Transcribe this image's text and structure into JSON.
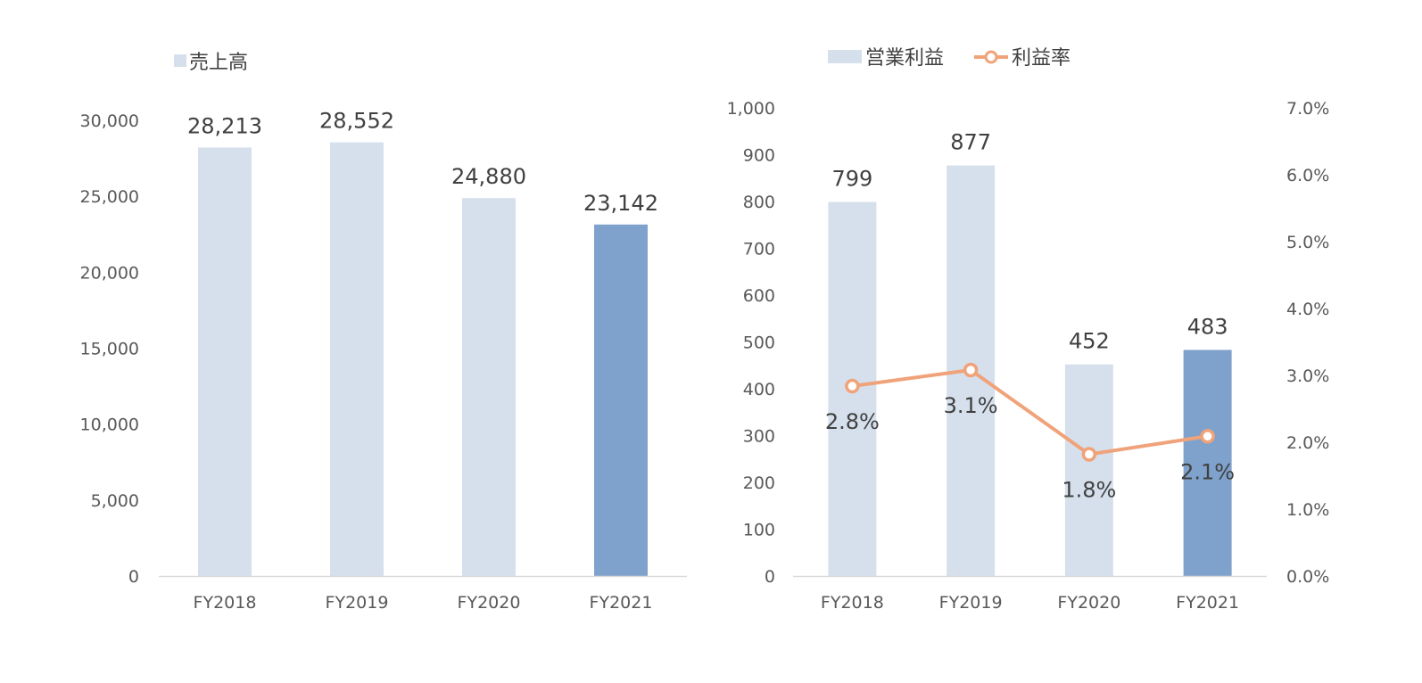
{
  "chart_data": [
    {
      "type": "bar",
      "categories": [
        "FY2018",
        "FY2019",
        "FY2020",
        "FY2021"
      ],
      "series": [
        {
          "name": "売上高",
          "values": [
            28213,
            28552,
            24880,
            23142
          ],
          "value_labels": [
            "28,213",
            "28,552",
            "24,880",
            "23,142"
          ]
        }
      ],
      "ylim": [
        0,
        30000
      ],
      "y_ticks": [
        0,
        5000,
        10000,
        15000,
        20000,
        25000,
        30000
      ],
      "y_tick_labels": [
        "0",
        "5,000",
        "10,000",
        "15,000",
        "20,000",
        "25,000",
        "30,000"
      ],
      "grid": false,
      "legend_position": "top-left",
      "highlight_category": "FY2021"
    },
    {
      "type": "bar+line",
      "categories": [
        "FY2018",
        "FY2019",
        "FY2020",
        "FY2021"
      ],
      "series": [
        {
          "name": "営業利益",
          "type": "bar",
          "axis": "left",
          "values": [
            799,
            877,
            452,
            483
          ],
          "value_labels": [
            "799",
            "877",
            "452",
            "483"
          ]
        },
        {
          "name": "利益率",
          "type": "line",
          "axis": "right",
          "values": [
            2.8,
            3.1,
            1.8,
            2.1
          ],
          "plotted_values": [
            2.84,
            3.08,
            1.82,
            2.09
          ],
          "value_labels": [
            "2.8%",
            "3.1%",
            "1.8%",
            "2.1%"
          ]
        }
      ],
      "ylim_left": [
        0,
        1000
      ],
      "y_ticks_left": [
        0,
        100,
        200,
        300,
        400,
        500,
        600,
        700,
        800,
        900,
        1000
      ],
      "y_tick_labels_left": [
        "0",
        "100",
        "200",
        "300",
        "400",
        "500",
        "600",
        "700",
        "800",
        "900",
        "1,000"
      ],
      "ylim_right": [
        0,
        7
      ],
      "y_ticks_right": [
        0,
        1,
        2,
        3,
        4,
        5,
        6,
        7
      ],
      "y_tick_labels_right": [
        "0.0%",
        "1.0%",
        "2.0%",
        "3.0%",
        "4.0%",
        "5.0%",
        "6.0%",
        "7.0%"
      ],
      "grid": false,
      "legend_position": "top-center",
      "highlight_category": "FY2021"
    }
  ],
  "colors": {
    "bar": "#d6e0ed",
    "bar_highlight": "#7fa2cd",
    "line": "#f0a37a",
    "marker_fill": "#ffffff",
    "axis": "#d9d9d9",
    "label_text": "#404040",
    "tick_text": "#595959"
  }
}
